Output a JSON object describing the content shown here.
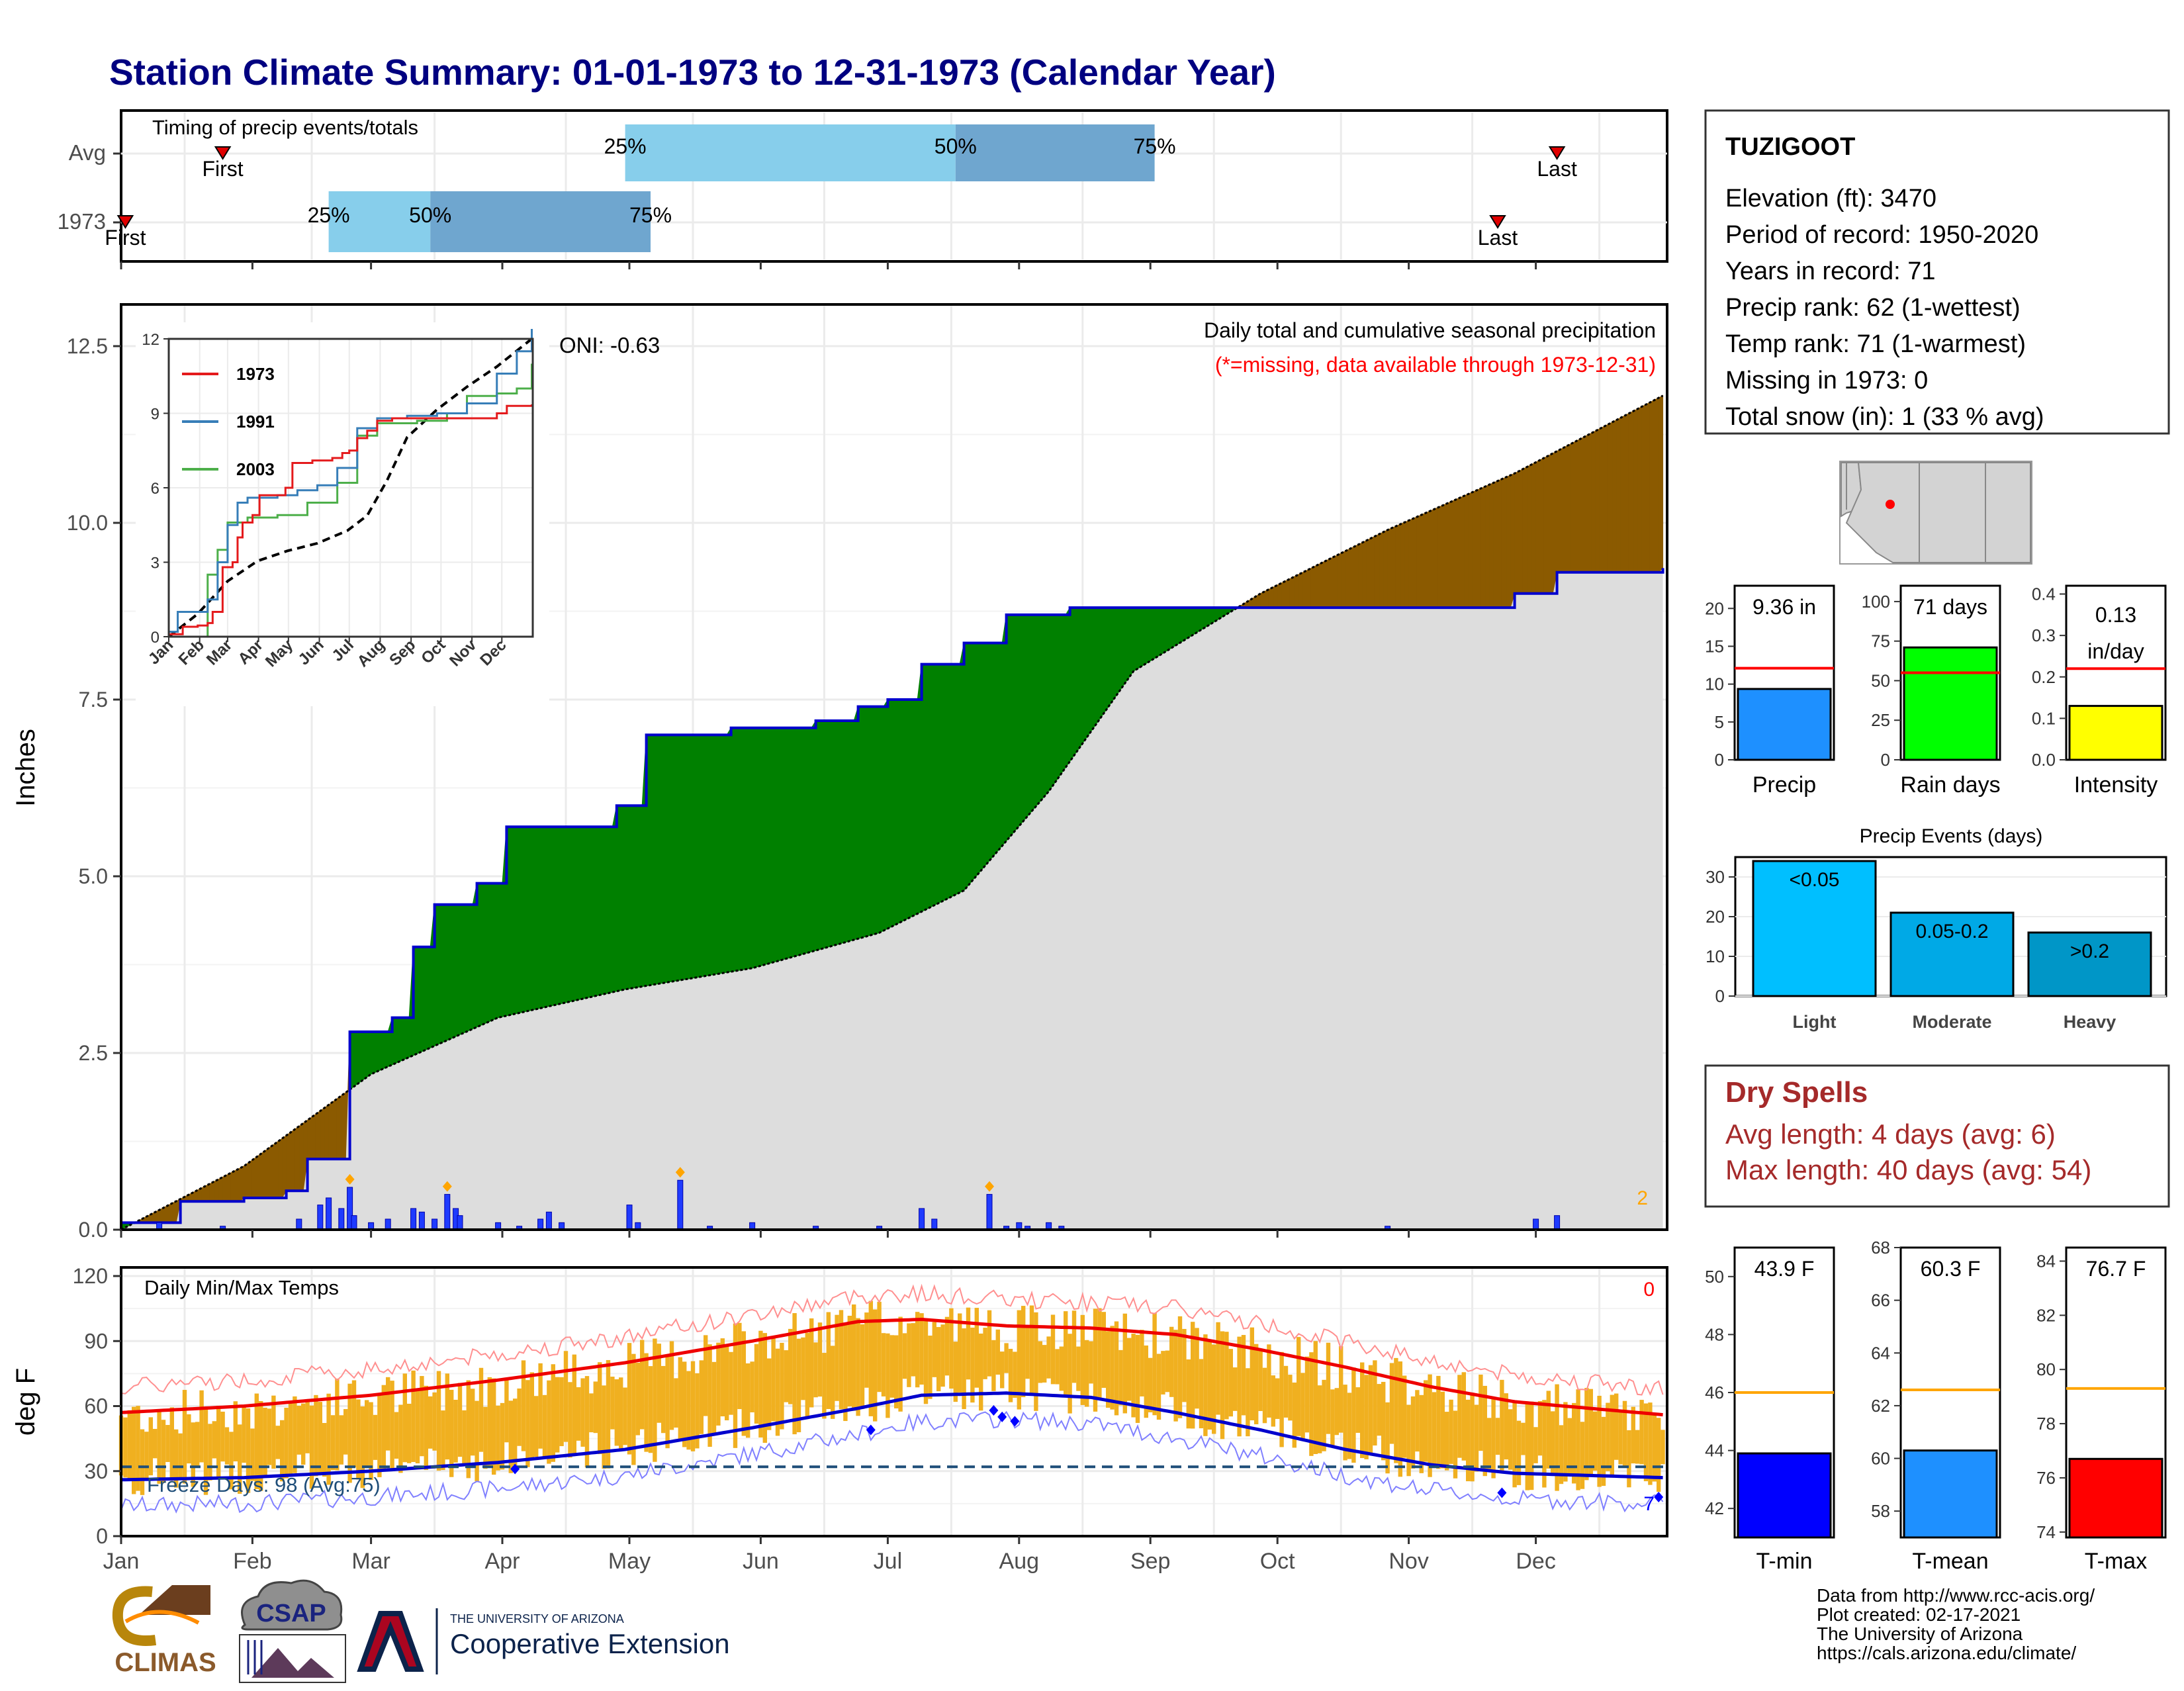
{
  "title": "Station Climate Summary: 01-01-1973 to 12-31-1973 (Calendar Year)",
  "months": [
    "Jan",
    "Feb",
    "Mar",
    "Apr",
    "May",
    "Jun",
    "Jul",
    "Aug",
    "Sep",
    "Oct",
    "Nov",
    "Dec"
  ],
  "timing": {
    "title": "Timing of precip events/totals",
    "rows": [
      {
        "label": "Avg",
        "first_label": "First",
        "last_label": "Last",
        "first_day": 25,
        "last_day": 340,
        "p25_day": 120,
        "p50_day": 198,
        "p75_day": 245,
        "p25_label": "25%",
        "p50_label": "50%",
        "p75_label": "75%"
      },
      {
        "label": "1973",
        "first_label": "First",
        "last_label": "Last",
        "first_day": 2,
        "last_day": 326,
        "p25_day": 50,
        "p50_day": 74,
        "p75_day": 126,
        "p25_label": "25%",
        "p50_label": "50%",
        "p75_label": "75%"
      }
    ]
  },
  "precip_panel": {
    "ylabel": "Inches",
    "yticks": [
      "0.0",
      "2.5",
      "5.0",
      "7.5",
      "10.0",
      "12.5"
    ],
    "oni_label": "ONI: -0.63",
    "subtitle": "Daily total and cumulative seasonal precipitation",
    "missing_note": "(*=missing, data available through 1973-12-31)",
    "corner_count": "2"
  },
  "inset": {
    "yticks": [
      "0",
      "3",
      "6",
      "9",
      "12"
    ],
    "months": [
      "Jan",
      "Feb",
      "Mar",
      "Apr",
      "May",
      "Jun",
      "Jul",
      "Aug",
      "Sep",
      "Oct",
      "Nov",
      "Dec"
    ],
    "legend": [
      "1973",
      "1991",
      "2003"
    ],
    "colors": {
      "1973": "#e41a1c",
      "1991": "#377eb8",
      "2003": "#4daf4a"
    }
  },
  "temp_panel": {
    "ylabel": "deg F",
    "yticks": [
      "0",
      "30",
      "60",
      "90",
      "120"
    ],
    "title": "Daily Min/Max Temps",
    "missing_count": "0",
    "freeze_label": "Freeze Days: 98 (Avg:75)",
    "freeze_line_f": 32,
    "corner_count": "7"
  },
  "station": {
    "name": "TUZIGOOT",
    "lines": [
      "Elevation (ft): 3470",
      "Period of record: 1950-2020",
      "Years in record: 71",
      "Precip rank: 62 (1-wettest)",
      "Temp rank: 71 (1-warmest)",
      "Missing in 1973: 0",
      "Total snow (in): 1 (33 % avg)"
    ]
  },
  "mini_bars": [
    {
      "name": "Precip",
      "value_label": "9.36 in",
      "value": 9.36,
      "avg": 12.1,
      "ymax": 23,
      "yticks": [
        "0",
        "5",
        "10",
        "15",
        "20"
      ],
      "tick_vals": [
        0,
        5,
        10,
        15,
        20
      ],
      "color": "#1e90ff"
    },
    {
      "name": "Rain days",
      "value_label": "71 days",
      "value": 71,
      "avg": 55,
      "ymax": 110,
      "yticks": [
        "0",
        "25",
        "50",
        "75",
        "100"
      ],
      "tick_vals": [
        0,
        25,
        50,
        75,
        100
      ],
      "color": "#00ff00"
    },
    {
      "name": "Intensity",
      "value_label": "0.13 in/day",
      "value_label_1": "0.13",
      "value_label_2": "in/day",
      "value": 0.13,
      "avg": 0.22,
      "ymax": 0.42,
      "yticks": [
        "0.0",
        "0.1",
        "0.2",
        "0.3",
        "0.4"
      ],
      "tick_vals": [
        0,
        0.1,
        0.2,
        0.3,
        0.4
      ],
      "color": "#ffff00"
    }
  ],
  "precip_events": {
    "title": "Precip Events (days)",
    "yticks": [
      "0",
      "10",
      "20",
      "30"
    ],
    "bars": [
      {
        "label": "<0.05",
        "category": "Light",
        "value": 34,
        "color": "#00bfff"
      },
      {
        "label": "0.05-0.2",
        "category": "Moderate",
        "value": 21,
        "color": "#00a9e6"
      },
      {
        "label": ">0.2",
        "category": "Heavy",
        "value": 16,
        "color": "#0096c7"
      }
    ]
  },
  "dry_spells": {
    "title": "Dry Spells",
    "avg_line": "Avg length: 4 days (avg: 6)",
    "max_line": "Max length: 40 days (avg: 54)"
  },
  "temp_bars": [
    {
      "name": "T-min",
      "value_label": "43.9 F",
      "value": 43.9,
      "avg": 46.0,
      "ymin": 41,
      "ymax": 51,
      "yticks": [
        "42",
        "44",
        "46",
        "48",
        "50"
      ],
      "tick_vals": [
        42,
        44,
        46,
        48,
        50
      ],
      "color": "#0000ff"
    },
    {
      "name": "T-mean",
      "value_label": "60.3 F",
      "value": 60.3,
      "avg": 62.6,
      "ymin": 57,
      "ymax": 68,
      "yticks": [
        "58",
        "60",
        "62",
        "64",
        "66",
        "68"
      ],
      "tick_vals": [
        58,
        60,
        62,
        64,
        66,
        68
      ],
      "color": "#1e90ff"
    },
    {
      "name": "T-max",
      "value_label": "76.7 F",
      "value": 76.7,
      "avg": 79.3,
      "ymin": 73.8,
      "ymax": 84.5,
      "yticks": [
        "74",
        "76",
        "78",
        "80",
        "82",
        "84"
      ],
      "tick_vals": [
        74,
        76,
        78,
        80,
        82,
        84
      ],
      "color": "#ff0000"
    }
  ],
  "footer": {
    "logos": {
      "climas": "CLIMAS",
      "csap": "CSAP",
      "ua_small": "THE UNIVERSITY OF ARIZONA",
      "ua_big": "Cooperative Extension"
    },
    "credits": [
      "Data from http://www.rcc-acis.org/",
      "Plot created: 02-17-2021",
      "The University of Arizona",
      "https://cals.arizona.edu/climate/"
    ]
  },
  "colors": {
    "title": "#000080",
    "surplus": "#008000",
    "deficit": "#8b5a00",
    "normal_fill": "#dddddd",
    "cumulative_line": "#0000cd",
    "temp_bar": "#f0b020",
    "dry_spell": "#a52a2a"
  },
  "chart_data": {
    "type": "area",
    "x_unit": "day of year 1973",
    "cumulative_precip_1973": [
      [
        1,
        0.1
      ],
      [
        15,
        0.4
      ],
      [
        30,
        0.45
      ],
      [
        40,
        0.55
      ],
      [
        45,
        1.0
      ],
      [
        55,
        2.8
      ],
      [
        65,
        3.0
      ],
      [
        70,
        4.0
      ],
      [
        75,
        4.6
      ],
      [
        85,
        4.9
      ],
      [
        92,
        5.7
      ],
      [
        110,
        5.7
      ],
      [
        118,
        6.0
      ],
      [
        125,
        7.0
      ],
      [
        135,
        7.0
      ],
      [
        145,
        7.1
      ],
      [
        165,
        7.2
      ],
      [
        175,
        7.4
      ],
      [
        182,
        7.5
      ],
      [
        190,
        8.0
      ],
      [
        200,
        8.3
      ],
      [
        210,
        8.7
      ],
      [
        225,
        8.8
      ],
      [
        250,
        8.8
      ],
      [
        270,
        8.8
      ],
      [
        300,
        8.8
      ],
      [
        330,
        9.0
      ],
      [
        340,
        9.3
      ],
      [
        365,
        9.36
      ]
    ],
    "normal_cumulative": [
      [
        1,
        0.0
      ],
      [
        30,
        0.9
      ],
      [
        60,
        2.2
      ],
      [
        90,
        3.0
      ],
      [
        120,
        3.4
      ],
      [
        150,
        3.7
      ],
      [
        180,
        4.2
      ],
      [
        200,
        4.8
      ],
      [
        220,
        6.2
      ],
      [
        240,
        7.9
      ],
      [
        270,
        9.0
      ],
      [
        300,
        9.9
      ],
      [
        330,
        10.7
      ],
      [
        365,
        11.8
      ]
    ],
    "daily_precip": [
      [
        10,
        0.1
      ],
      [
        25,
        0.05
      ],
      [
        43,
        0.15
      ],
      [
        48,
        0.35
      ],
      [
        50,
        0.45
      ],
      [
        53,
        0.3
      ],
      [
        55,
        0.6
      ],
      [
        56,
        0.2
      ],
      [
        60,
        0.1
      ],
      [
        64,
        0.15
      ],
      [
        70,
        0.3
      ],
      [
        72,
        0.25
      ],
      [
        75,
        0.15
      ],
      [
        78,
        0.5
      ],
      [
        80,
        0.3
      ],
      [
        81,
        0.2
      ],
      [
        90,
        0.1
      ],
      [
        95,
        0.05
      ],
      [
        100,
        0.15
      ],
      [
        102,
        0.25
      ],
      [
        105,
        0.1
      ],
      [
        121,
        0.35
      ],
      [
        123,
        0.1
      ],
      [
        133,
        0.7
      ],
      [
        140,
        0.05
      ],
      [
        150,
        0.1
      ],
      [
        165,
        0.05
      ],
      [
        180,
        0.05
      ],
      [
        190,
        0.3
      ],
      [
        193,
        0.15
      ],
      [
        206,
        0.5
      ],
      [
        210,
        0.05
      ],
      [
        213,
        0.1
      ],
      [
        215,
        0.05
      ],
      [
        220,
        0.1
      ],
      [
        223,
        0.05
      ],
      [
        300,
        0.05
      ],
      [
        335,
        0.15
      ],
      [
        340,
        0.2
      ]
    ],
    "temp_normal_max": [
      [
        1,
        57
      ],
      [
        30,
        60
      ],
      [
        60,
        65
      ],
      [
        90,
        72
      ],
      [
        120,
        80
      ],
      [
        150,
        90
      ],
      [
        175,
        99
      ],
      [
        190,
        100
      ],
      [
        210,
        97
      ],
      [
        230,
        96
      ],
      [
        250,
        93
      ],
      [
        270,
        86
      ],
      [
        290,
        78
      ],
      [
        310,
        69
      ],
      [
        330,
        62
      ],
      [
        365,
        56
      ]
    ],
    "temp_normal_min": [
      [
        1,
        26
      ],
      [
        30,
        27
      ],
      [
        60,
        30
      ],
      [
        90,
        34
      ],
      [
        120,
        40
      ],
      [
        150,
        50
      ],
      [
        175,
        59
      ],
      [
        190,
        65
      ],
      [
        210,
        66
      ],
      [
        230,
        64
      ],
      [
        250,
        57
      ],
      [
        270,
        49
      ],
      [
        290,
        40
      ],
      [
        310,
        33
      ],
      [
        330,
        29
      ],
      [
        365,
        27
      ]
    ],
    "freeze_threshold_f": 32
  }
}
